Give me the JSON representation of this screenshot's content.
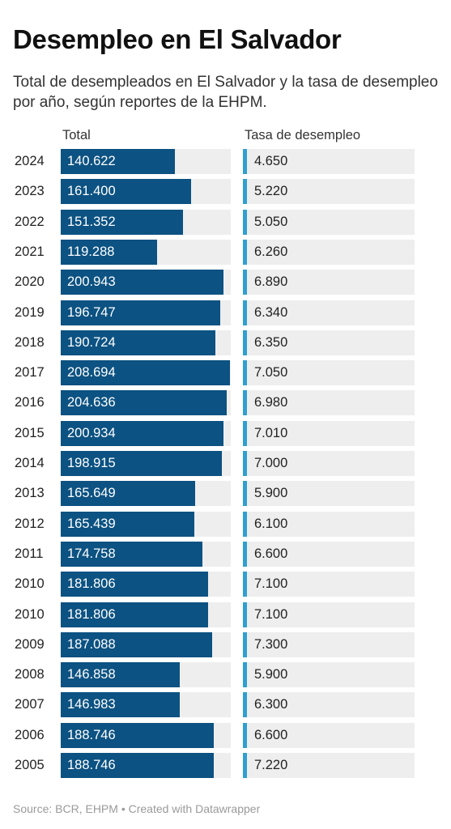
{
  "title": "Desempleo en El Salvador",
  "subtitle": "Total de desempleados en El Salvador y la tasa de desempleo por año, según reportes de la EHPM.",
  "footer": "Source: BCR, EHPM • Created with Datawrapper",
  "colors": {
    "bar_total": "#0c5282",
    "bar_tasa": "#2fa0d0",
    "track": "#eeeeee"
  },
  "chart_data": {
    "type": "table",
    "columns": [
      "Total",
      "Tasa de desempleo"
    ],
    "x_max_total": 210000,
    "rows": [
      {
        "year": "2024",
        "total": 140622,
        "total_label": "140.622",
        "tasa_label": "4.650"
      },
      {
        "year": "2023",
        "total": 161400,
        "total_label": "161.400",
        "tasa_label": "5.220"
      },
      {
        "year": "2022",
        "total": 151352,
        "total_label": "151.352",
        "tasa_label": "5.050"
      },
      {
        "year": "2021",
        "total": 119288,
        "total_label": "119.288",
        "tasa_label": "6.260"
      },
      {
        "year": "2020",
        "total": 200943,
        "total_label": "200.943",
        "tasa_label": "6.890"
      },
      {
        "year": "2019",
        "total": 196747,
        "total_label": "196.747",
        "tasa_label": "6.340"
      },
      {
        "year": "2018",
        "total": 190724,
        "total_label": "190.724",
        "tasa_label": "6.350"
      },
      {
        "year": "2017",
        "total": 208694,
        "total_label": "208.694",
        "tasa_label": "7.050"
      },
      {
        "year": "2016",
        "total": 204636,
        "total_label": "204.636",
        "tasa_label": "6.980"
      },
      {
        "year": "2015",
        "total": 200934,
        "total_label": "200.934",
        "tasa_label": "7.010"
      },
      {
        "year": "2014",
        "total": 198915,
        "total_label": "198.915",
        "tasa_label": "7.000"
      },
      {
        "year": "2013",
        "total": 165649,
        "total_label": "165.649",
        "tasa_label": "5.900"
      },
      {
        "year": "2012",
        "total": 165439,
        "total_label": "165.439",
        "tasa_label": "6.100"
      },
      {
        "year": "2011",
        "total": 174758,
        "total_label": "174.758",
        "tasa_label": "6.600"
      },
      {
        "year": "2010",
        "total": 181806,
        "total_label": "181.806",
        "tasa_label": "7.100"
      },
      {
        "year": "2010",
        "total": 181806,
        "total_label": "181.806",
        "tasa_label": "7.100"
      },
      {
        "year": "2009",
        "total": 187088,
        "total_label": "187.088",
        "tasa_label": "7.300"
      },
      {
        "year": "2008",
        "total": 146858,
        "total_label": "146.858",
        "tasa_label": "5.900"
      },
      {
        "year": "2007",
        "total": 146983,
        "total_label": "146.983",
        "tasa_label": "6.300"
      },
      {
        "year": "2006",
        "total": 188746,
        "total_label": "188.746",
        "tasa_label": "6.600"
      },
      {
        "year": "2005",
        "total": 188746,
        "total_label": "188.746",
        "tasa_label": "7.220"
      }
    ]
  }
}
